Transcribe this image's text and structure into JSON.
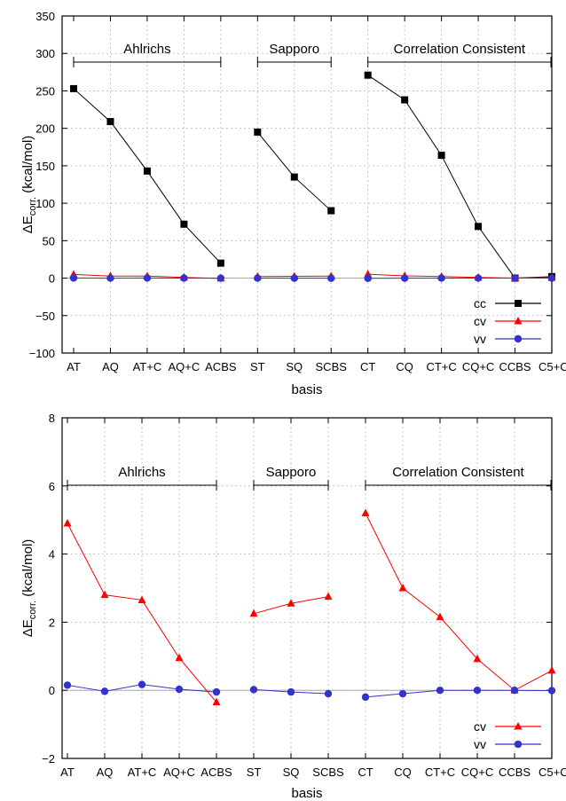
{
  "chart_data": [
    {
      "type": "line",
      "xlabel": "basis",
      "ylabel": "ΔE",
      "ylabel_sub": "corr.",
      "ylabel_unit": " (kcal/mol)",
      "ylim": [
        -100,
        350
      ],
      "yticks": [
        -100,
        -50,
        0,
        50,
        100,
        150,
        200,
        250,
        300,
        350
      ],
      "grid": true,
      "legend_position": "bottom-right",
      "categories": [
        "AT",
        "AQ",
        "AT+C",
        "AQ+C",
        "ACBS",
        "ST",
        "SQ",
        "SCBS",
        "CT",
        "CQ",
        "CT+C",
        "CQ+C",
        "CCBS",
        "C5+C"
      ],
      "groups": [
        {
          "label": "Ahlrichs",
          "from": 0,
          "to": 4
        },
        {
          "label": "Sapporo",
          "from": 5,
          "to": 7
        },
        {
          "label": "Correlation Consistent",
          "from": 8,
          "to": 13
        }
      ],
      "segments": [
        [
          0,
          4
        ],
        [
          5,
          7
        ],
        [
          8,
          13
        ]
      ],
      "series": [
        {
          "name": "cc",
          "color": "#000000",
          "marker": "square",
          "values": [
            253,
            209,
            143,
            72,
            20,
            195,
            135,
            90,
            271,
            238,
            164,
            69,
            0,
            2
          ]
        },
        {
          "name": "cv",
          "color": "#ff0000",
          "marker": "triangle",
          "values": [
            4.9,
            2.8,
            2.7,
            0.9,
            -0.35,
            2.2,
            2.5,
            2.8,
            5.2,
            3.0,
            2.2,
            0.9,
            0,
            0.6
          ]
        },
        {
          "name": "vv",
          "color": "#3333cc",
          "marker": "circle",
          "values": [
            0.15,
            -0.03,
            0.17,
            0.03,
            -0.05,
            0.02,
            -0.05,
            -0.1,
            -0.2,
            -0.1,
            0.0,
            0.0,
            0.0,
            -0.01
          ]
        }
      ]
    },
    {
      "type": "line",
      "xlabel": "basis",
      "ylabel": "ΔE",
      "ylabel_sub": "corr.",
      "ylabel_unit": " (kcal/mol)",
      "ylim": [
        -2,
        8
      ],
      "yticks": [
        -2,
        0,
        2,
        4,
        6,
        8
      ],
      "grid": true,
      "legend_position": "bottom-right",
      "categories": [
        "AT",
        "AQ",
        "AT+C",
        "AQ+C",
        "ACBS",
        "ST",
        "SQ",
        "SCBS",
        "CT",
        "CQ",
        "CT+C",
        "CQ+C",
        "CCBS",
        "C5+C"
      ],
      "groups": [
        {
          "label": "Ahlrichs",
          "from": 0,
          "to": 4
        },
        {
          "label": "Sapporo",
          "from": 5,
          "to": 7
        },
        {
          "label": "Correlation Consistent",
          "from": 8,
          "to": 13
        }
      ],
      "segments": [
        [
          0,
          4
        ],
        [
          5,
          7
        ],
        [
          8,
          13
        ]
      ],
      "series": [
        {
          "name": "cv",
          "color": "#ff0000",
          "marker": "triangle",
          "values": [
            4.9,
            2.8,
            2.65,
            0.95,
            -0.35,
            2.25,
            2.55,
            2.75,
            5.2,
            3.0,
            2.15,
            0.92,
            0.0,
            0.58
          ]
        },
        {
          "name": "vv",
          "color": "#3333cc",
          "marker": "circle",
          "values": [
            0.15,
            -0.03,
            0.17,
            0.03,
            -0.05,
            0.02,
            -0.05,
            -0.1,
            -0.2,
            -0.1,
            0.0,
            0.0,
            0.0,
            -0.01
          ]
        }
      ]
    }
  ]
}
